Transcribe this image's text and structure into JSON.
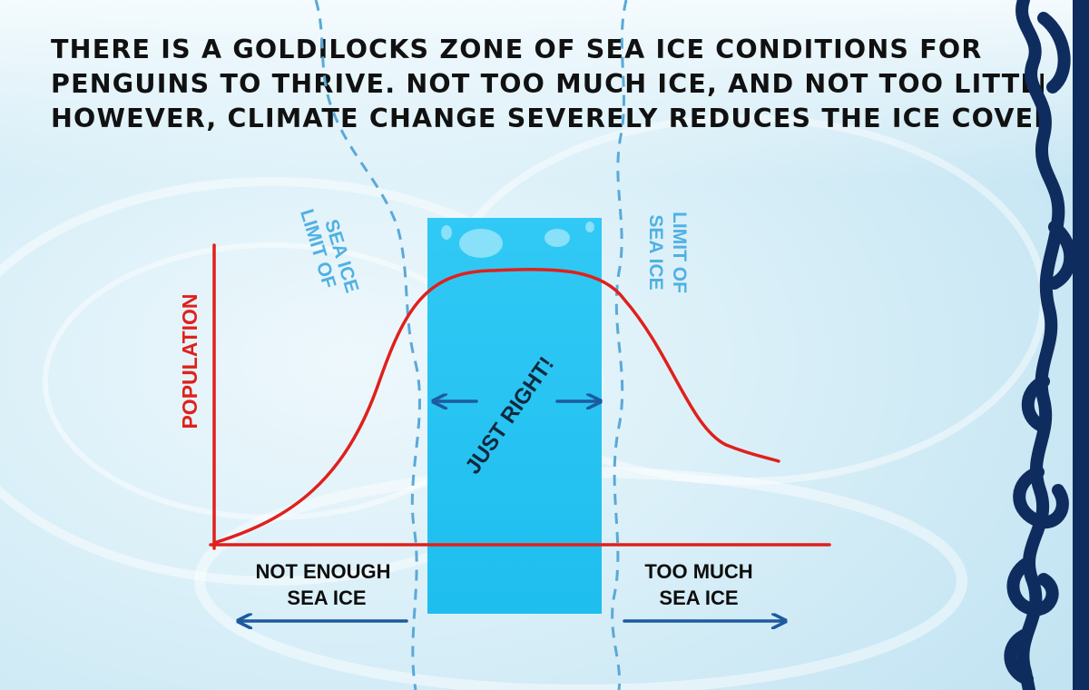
{
  "headline": [
    "THERE IS A GOLDILOCKS ZONE OF SEA ICE CONDITIONS FOR",
    "PENGUINS TO THRIVE.  NOT TOO MUCH ICE, AND NOT TOO LITTLE.",
    "HOWEVER, CLIMATE CHANGE SEVERELY REDUCES THE ICE COVER."
  ],
  "labels": {
    "y_axis": "POPULATION",
    "limit_left": [
      "LIMIT OF",
      "SEA ICE"
    ],
    "limit_right": [
      "LIMIT OF",
      "SEA ICE"
    ],
    "zone": "JUST RIGHT!",
    "left_region": [
      "NOT ENOUGH",
      "SEA ICE"
    ],
    "right_region": [
      "TOO MUCH",
      "SEA ICE"
    ]
  },
  "colors": {
    "curve": "#e0201c",
    "axes": "#e0201c",
    "zone_fill": "#23c4f2",
    "limit_lines": "#5aa9d8",
    "arrows": "#1d5a9e",
    "border": "#0f2c5e",
    "background": "#d7eef8"
  }
}
